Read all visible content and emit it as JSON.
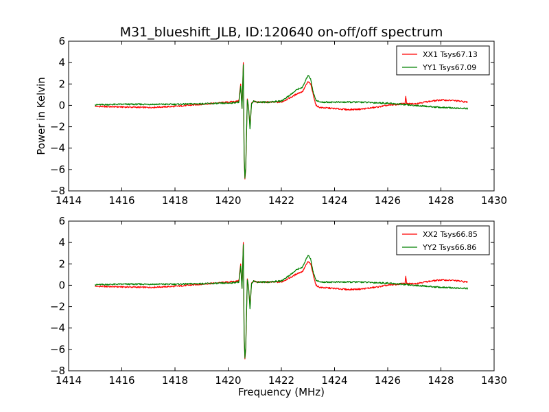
{
  "title": "M31_blueshift_JLB, ID:120640 on-off/off spectrum",
  "chart_data": [
    {
      "type": "line",
      "title": "M31_blueshift_JLB, ID:120640 on-off/off spectrum",
      "xlabel": "",
      "ylabel": "Power in Kelvin",
      "xlim": [
        1414,
        1430
      ],
      "ylim": [
        -8,
        6
      ],
      "xticks": [
        1414,
        1416,
        1418,
        1420,
        1422,
        1424,
        1426,
        1428,
        1430
      ],
      "yticks": [
        -8,
        -6,
        -4,
        -2,
        0,
        2,
        4,
        6
      ],
      "grid": false,
      "legend": "top-right",
      "series": [
        {
          "name": "XX1 Tsys67.13",
          "color": "#ff0000",
          "x": [
            1415.0,
            1416.0,
            1417.0,
            1418.0,
            1419.0,
            1420.0,
            1420.4,
            1420.47,
            1420.52,
            1420.57,
            1420.6,
            1420.63,
            1420.66,
            1420.72,
            1420.77,
            1420.82,
            1420.88,
            1420.95,
            1421.1,
            1421.5,
            1422.0,
            1422.4,
            1422.6,
            1422.8,
            1423.0,
            1423.1,
            1423.2,
            1423.3,
            1423.45,
            1424.0,
            1424.5,
            1425.0,
            1425.5,
            1426.0,
            1426.4,
            1426.65,
            1426.68,
            1426.71,
            1427.0,
            1427.5,
            1428.0,
            1428.5,
            1429.0
          ],
          "y": [
            -0.1,
            -0.15,
            -0.2,
            -0.1,
            0.1,
            0.3,
            0.4,
            2.0,
            -0.3,
            4.0,
            -5.0,
            -6.9,
            -6.0,
            0.6,
            -0.3,
            -2.0,
            0.2,
            0.4,
            0.3,
            0.3,
            0.3,
            0.8,
            1.1,
            1.3,
            2.2,
            2.0,
            1.0,
            0.0,
            -0.2,
            -0.3,
            -0.4,
            -0.35,
            -0.2,
            0.0,
            0.1,
            0.2,
            0.85,
            0.15,
            0.15,
            0.35,
            0.5,
            0.45,
            0.3
          ]
        },
        {
          "name": "YY1 Tsys67.09",
          "color": "#008000",
          "x": [
            1415.0,
            1416.0,
            1417.0,
            1418.0,
            1419.0,
            1420.0,
            1420.4,
            1420.47,
            1420.52,
            1420.57,
            1420.6,
            1420.63,
            1420.66,
            1420.72,
            1420.77,
            1420.82,
            1420.88,
            1420.95,
            1421.1,
            1421.5,
            1422.0,
            1422.4,
            1422.6,
            1422.8,
            1423.0,
            1423.1,
            1423.2,
            1423.3,
            1423.45,
            1424.0,
            1424.5,
            1425.0,
            1425.5,
            1426.0,
            1426.5,
            1427.0,
            1427.5,
            1428.0,
            1428.5,
            1429.0
          ],
          "y": [
            0.05,
            0.1,
            0.1,
            0.1,
            0.15,
            0.2,
            0.3,
            1.8,
            -0.3,
            3.8,
            -4.8,
            -6.8,
            -5.8,
            0.5,
            -0.3,
            -2.2,
            0.2,
            0.4,
            0.3,
            0.3,
            0.4,
            1.1,
            1.5,
            1.7,
            2.8,
            2.5,
            1.2,
            0.5,
            0.3,
            0.3,
            0.3,
            0.3,
            0.25,
            0.2,
            0.1,
            0.0,
            -0.1,
            -0.2,
            -0.25,
            -0.3
          ]
        }
      ]
    },
    {
      "type": "line",
      "title": "",
      "xlabel": "Frequency (MHz)",
      "ylabel": "",
      "xlim": [
        1414,
        1430
      ],
      "ylim": [
        -8,
        6
      ],
      "xticks": [
        1414,
        1416,
        1418,
        1420,
        1422,
        1424,
        1426,
        1428,
        1430
      ],
      "yticks": [
        -8,
        -6,
        -4,
        -2,
        0,
        2,
        4,
        6
      ],
      "grid": false,
      "legend": "top-right",
      "series": [
        {
          "name": "XX2 Tsys66.85",
          "color": "#ff0000",
          "x": [
            1415.0,
            1416.0,
            1417.0,
            1418.0,
            1419.0,
            1420.0,
            1420.4,
            1420.47,
            1420.52,
            1420.57,
            1420.6,
            1420.63,
            1420.66,
            1420.72,
            1420.77,
            1420.82,
            1420.88,
            1420.95,
            1421.1,
            1421.5,
            1422.0,
            1422.4,
            1422.6,
            1422.8,
            1423.0,
            1423.1,
            1423.2,
            1423.3,
            1423.45,
            1424.0,
            1424.5,
            1425.0,
            1425.5,
            1426.0,
            1426.4,
            1426.65,
            1426.68,
            1426.71,
            1427.0,
            1427.5,
            1428.0,
            1428.5,
            1429.0
          ],
          "y": [
            -0.1,
            -0.15,
            -0.2,
            -0.1,
            0.1,
            0.3,
            0.4,
            2.0,
            -0.3,
            4.0,
            -5.0,
            -6.9,
            -6.0,
            0.6,
            -0.3,
            -2.0,
            0.2,
            0.4,
            0.3,
            0.3,
            0.3,
            0.8,
            1.1,
            1.3,
            2.2,
            2.0,
            1.0,
            0.0,
            -0.2,
            -0.3,
            -0.4,
            -0.35,
            -0.2,
            0.0,
            0.1,
            0.2,
            0.85,
            0.15,
            0.15,
            0.35,
            0.5,
            0.45,
            0.3
          ]
        },
        {
          "name": "YY2 Tsys66.86",
          "color": "#008000",
          "x": [
            1415.0,
            1416.0,
            1417.0,
            1418.0,
            1419.0,
            1420.0,
            1420.4,
            1420.47,
            1420.52,
            1420.57,
            1420.6,
            1420.63,
            1420.66,
            1420.72,
            1420.77,
            1420.82,
            1420.88,
            1420.95,
            1421.1,
            1421.5,
            1422.0,
            1422.4,
            1422.6,
            1422.8,
            1423.0,
            1423.1,
            1423.2,
            1423.3,
            1423.45,
            1424.0,
            1424.5,
            1425.0,
            1425.5,
            1426.0,
            1426.5,
            1427.0,
            1427.5,
            1428.0,
            1428.5,
            1429.0
          ],
          "y": [
            0.05,
            0.1,
            0.1,
            0.1,
            0.15,
            0.2,
            0.3,
            1.8,
            -0.3,
            3.8,
            -4.8,
            -6.8,
            -5.8,
            0.5,
            -0.3,
            -2.2,
            0.2,
            0.4,
            0.3,
            0.3,
            0.4,
            1.1,
            1.5,
            1.7,
            2.8,
            2.5,
            1.2,
            0.5,
            0.3,
            0.3,
            0.3,
            0.3,
            0.25,
            0.2,
            0.1,
            0.0,
            -0.1,
            -0.2,
            -0.25,
            -0.3
          ]
        }
      ]
    }
  ]
}
